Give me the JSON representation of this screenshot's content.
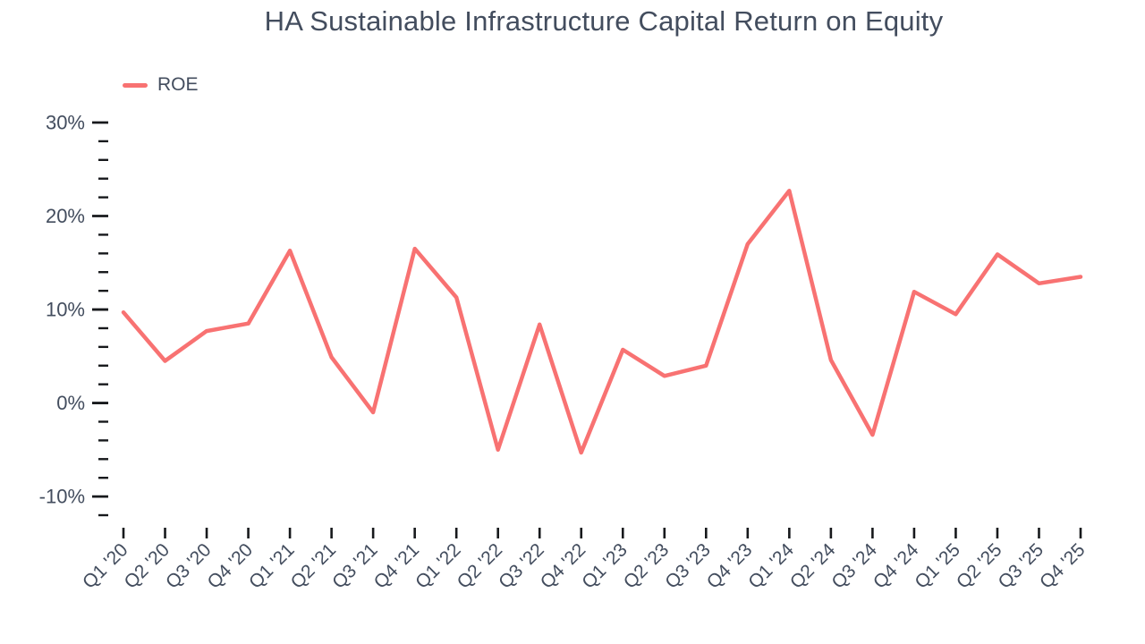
{
  "page": {
    "background": "#ffffff"
  },
  "chart_data": {
    "type": "line",
    "title": "HA Sustainable Infrastructure Capital Return on Equity",
    "categories": [
      "Q1 '20",
      "Q2 '20",
      "Q3 '20",
      "Q4 '20",
      "Q1 '21",
      "Q2 '21",
      "Q3 '21",
      "Q4 '21",
      "Q1 '22",
      "Q2 '22",
      "Q3 '22",
      "Q4 '22",
      "Q1 '23",
      "Q2 '23",
      "Q3 '23",
      "Q4 '23",
      "Q1 '24",
      "Q2 '24",
      "Q3 '24",
      "Q4 '24",
      "Q1 '25",
      "Q2 '25",
      "Q3 '25",
      "Q4 '25"
    ],
    "series": [
      {
        "name": "ROE",
        "color": "#F87272",
        "values": [
          9.7,
          4.5,
          7.7,
          8.5,
          16.3,
          4.9,
          -1.0,
          16.5,
          11.3,
          -5.0,
          8.4,
          -5.3,
          5.7,
          2.9,
          4.0,
          17.0,
          22.7,
          4.6,
          -3.4,
          11.9,
          9.5,
          15.9,
          12.8,
          13.5
        ]
      }
    ],
    "y_axis": {
      "unit": "%",
      "range": [
        -12,
        30
      ],
      "major_ticks": [
        30,
        20,
        10,
        0,
        -10
      ],
      "major_tick_labels": [
        "30%",
        "20%",
        "10%",
        "0%",
        "-10%"
      ],
      "minor_tick_step": 2
    },
    "x_axis": {
      "label_rotation_deg": -45
    },
    "legend": {
      "position": "top-left",
      "entries": [
        "ROE"
      ]
    },
    "grid": false,
    "text_color": "#434D5E",
    "tick_color": "#17191C"
  }
}
